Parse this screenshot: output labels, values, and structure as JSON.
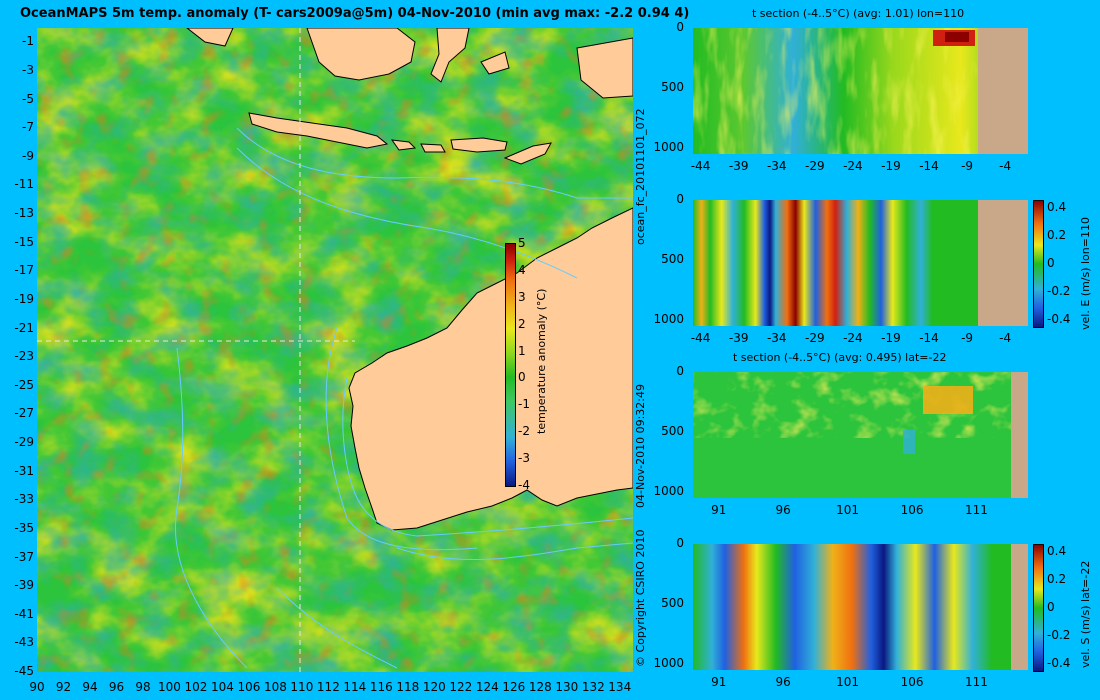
{
  "title": "OceanMAPS 5m temp. anomaly (T- cars2009a@5m) 04-Nov-2010 (min avg max: -2.2 0.94 4)",
  "colors": {
    "background": "#00bfff",
    "land": "#ffcc99",
    "panel_land": "#c8a888",
    "contour": "#66ccff",
    "crosshair": "#e8e8e8"
  },
  "colorscale": [
    "#0a1880",
    "#2060e0",
    "#30b0d8",
    "#3cc864",
    "#22bb22",
    "#8fd81c",
    "#e8e81c",
    "#f0b018",
    "#f07010",
    "#d02010",
    "#8c0000"
  ],
  "side_labels": {
    "run": "ocean_fc_20101101_072",
    "timestamp": "04-Nov-2010 09:32:49",
    "copyright": "© Copyright CSIRO 2010"
  },
  "chart_data": [
    {
      "type": "heatmap",
      "title": "",
      "xlabel": "",
      "ylabel": "",
      "x_ticks": [
        "90",
        "92",
        "94",
        "96",
        "98",
        "100",
        "102",
        "104",
        "106",
        "108",
        "110",
        "112",
        "114",
        "116",
        "118",
        "120",
        "122",
        "124",
        "126",
        "128",
        "130",
        "132",
        "134"
      ],
      "y_ticks": [
        "-1",
        "-3",
        "-5",
        "-7",
        "-9",
        "-11",
        "-13",
        "-15",
        "-17",
        "-19",
        "-21",
        "-23",
        "-25",
        "-27",
        "-29",
        "-31",
        "-33",
        "-35",
        "-37",
        "-39",
        "-41",
        "-43",
        "-45"
      ],
      "xlim": [
        90,
        135
      ],
      "ylim": [
        -45,
        0
      ],
      "crosshair": {
        "lon": 110,
        "lat": -22
      },
      "colorbar": {
        "label": "temperature anomaly (°C)",
        "ticks": [
          "5",
          "4",
          "3",
          "2",
          "1",
          "0",
          "-1",
          "-2",
          "-3",
          "-4"
        ],
        "range": [
          -4,
          5
        ]
      },
      "stats": {
        "min": -2.2,
        "avg": 0.94,
        "max": 4
      }
    },
    {
      "type": "heatmap",
      "title": "t section (-4..5°C) (avg: 1.01) lon=110",
      "x_ticks": [
        "-44",
        "-39",
        "-34",
        "-29",
        "-24",
        "-19",
        "-14",
        "-9",
        "-4"
      ],
      "y_ticks": [
        "0",
        "500",
        "1000"
      ],
      "xlim": [
        -45,
        -1
      ],
      "ylim": [
        1050,
        0
      ],
      "colorbar_label": "",
      "colorbar_ticks": []
    },
    {
      "type": "heatmap",
      "title": "",
      "x_ticks": [
        "-44",
        "-39",
        "-34",
        "-29",
        "-24",
        "-19",
        "-14",
        "-9",
        "-4"
      ],
      "y_ticks": [
        "0",
        "500",
        "1000"
      ],
      "xlim": [
        -45,
        -1
      ],
      "ylim": [
        1050,
        0
      ],
      "colorbar_label": "vel. E (m/s) lon=110",
      "colorbar_ticks": [
        "0.4",
        "0.2",
        "0",
        "-0.2",
        "-0.4"
      ]
    },
    {
      "type": "heatmap",
      "title": "t section (-4..5°C) (avg: 0.495) lat=-22",
      "x_ticks": [
        "91",
        "96",
        "101",
        "106",
        "111"
      ],
      "y_ticks": [
        "0",
        "500",
        "1000"
      ],
      "xlim": [
        89,
        115
      ],
      "ylim": [
        1050,
        0
      ],
      "colorbar_label": "",
      "colorbar_ticks": []
    },
    {
      "type": "heatmap",
      "title": "",
      "x_ticks": [
        "91",
        "96",
        "101",
        "106",
        "111"
      ],
      "y_ticks": [
        "0",
        "500",
        "1000"
      ],
      "xlim": [
        89,
        115
      ],
      "ylim": [
        1050,
        0
      ],
      "colorbar_label": "vel. S (m/s) lat=-22",
      "colorbar_ticks": [
        "0.4",
        "0.2",
        "0",
        "-0.2",
        "-0.4"
      ]
    }
  ]
}
